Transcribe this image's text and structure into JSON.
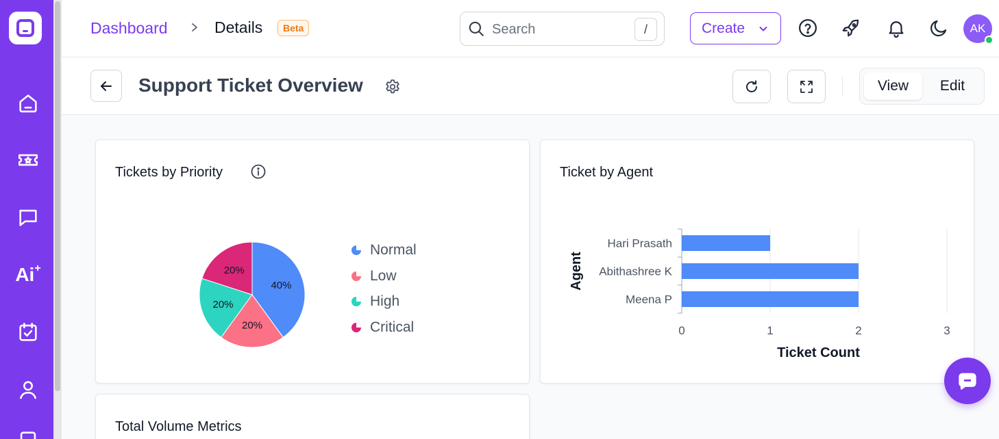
{
  "breadcrumb": {
    "root": "Dashboard",
    "current": "Details",
    "badge": "Beta"
  },
  "search": {
    "placeholder": "Search",
    "shortcut": "/"
  },
  "header": {
    "create_label": "Create",
    "avatar_initials": "AK"
  },
  "page": {
    "title": "Support Ticket Overview",
    "view_label": "View",
    "edit_label": "Edit"
  },
  "sidebar": {
    "ai_label": "Ai"
  },
  "colors": {
    "brand": "#7c3aed",
    "normal": "#4f8bf9",
    "low": "#fb7185",
    "high": "#2dd4bf",
    "critical": "#db2777"
  },
  "cards": {
    "priority": {
      "title": "Tickets by Priority"
    },
    "agent": {
      "title": "Ticket by Agent"
    },
    "volume": {
      "title": "Total Volume Metrics"
    }
  },
  "chart_data": [
    {
      "type": "pie",
      "title": "Tickets by Priority",
      "categories": [
        "Normal",
        "Low",
        "High",
        "Critical"
      ],
      "values": [
        40,
        20,
        20,
        20
      ],
      "labels": [
        "40%",
        "20%",
        "20%",
        "20%"
      ],
      "colors": [
        "#4f8bf9",
        "#fb7185",
        "#2dd4bf",
        "#db2777"
      ],
      "legend": "right"
    },
    {
      "type": "bar",
      "orientation": "horizontal",
      "title": "Ticket by Agent",
      "categories": [
        "Hari Prasath",
        "Abithashree K",
        "Meena P"
      ],
      "values": [
        1,
        2,
        2
      ],
      "xlabel": "Ticket Count",
      "ylabel": "Agent",
      "xlim": [
        0,
        3
      ],
      "xticks": [
        "0",
        "1",
        "2",
        "3"
      ],
      "color": "#4f8bf9",
      "grid": true
    }
  ]
}
